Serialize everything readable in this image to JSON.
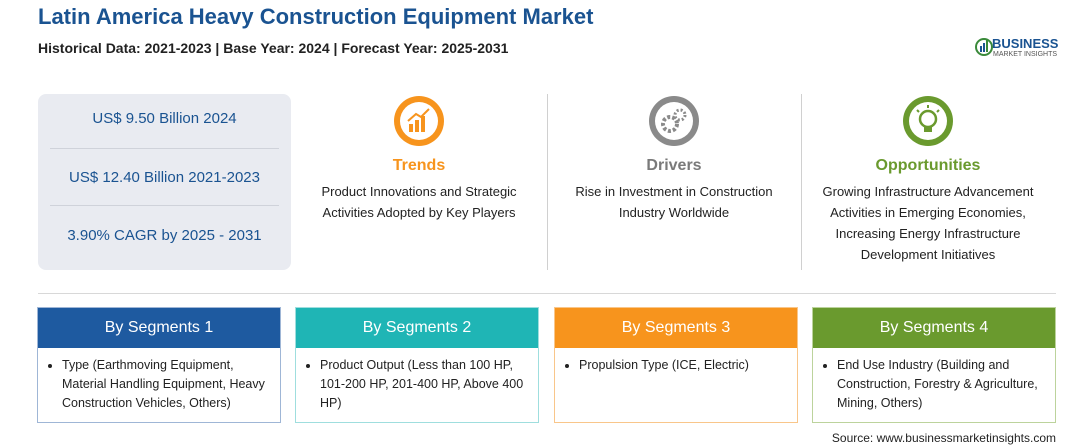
{
  "header": {
    "title": "Latin America Heavy Construction Equipment Market",
    "subtitle": "Historical Data: 2021-2023 | Base Year: 2024 | Forecast Year: 2025-2031",
    "logo": {
      "name": "BUSINESS",
      "tagline": "MARKET INSIGHTS"
    }
  },
  "stats": [
    "US$ 9.50 Billion 2024",
    "US$ 12.40 Billion 2021-2023",
    "3.90% CAGR by 2025 - 2031"
  ],
  "factors": [
    {
      "title": "Trends",
      "text": "Product Innovations and Strategic Activities Adopted by Key Players"
    },
    {
      "title": "Drivers",
      "text": "Rise in Investment in Construction Industry Worldwide"
    },
    {
      "title": "Opportunities",
      "text": "Growing Infrastructure Advancement Activities in Emerging Economies, Increasing Energy Infrastructure Development Initiatives"
    }
  ],
  "segments": [
    {
      "title": "By Segments 1",
      "text": "Type (Earthmoving Equipment, Material Handling Equipment, Heavy Construction Vehicles, Others)"
    },
    {
      "title": "By Segments 2",
      "text": "Product Output (Less than 100 HP, 101-200 HP, 201-400 HP, Above 400 HP)"
    },
    {
      "title": "By Segments 3",
      "text": "Propulsion Type (ICE, Electric)"
    },
    {
      "title": "By Segments 4",
      "text": "End Use Industry (Building and Construction, Forestry & Agriculture, Mining, Others)"
    }
  ],
  "source": "Source: www.businessmarketinsights.com"
}
